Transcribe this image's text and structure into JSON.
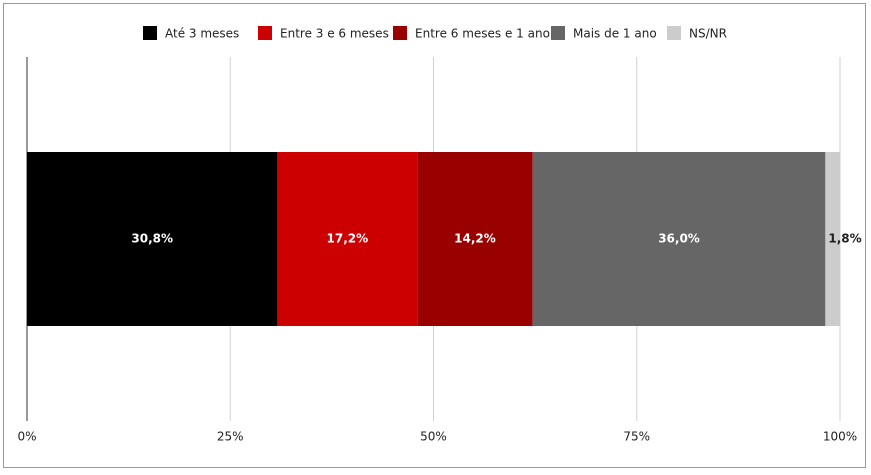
{
  "chart_data": {
    "type": "stacked-bar-horizontal",
    "categories": [
      null
    ],
    "series": [
      {
        "name": "Até 3 meses",
        "color": "#000000",
        "values": [
          30.8
        ],
        "value_labels": [
          "30,8%"
        ]
      },
      {
        "name": "Entre 3 e 6 meses",
        "color": "#cc0000",
        "values": [
          17.2
        ],
        "value_labels": [
          "17,2%"
        ]
      },
      {
        "name": "Entre 6 meses e 1 ano",
        "color": "#990000",
        "values": [
          14.2
        ],
        "value_labels": [
          "14,2%"
        ]
      },
      {
        "name": "Mais de 1 ano",
        "color": "#666666",
        "values": [
          36.0
        ],
        "value_labels": [
          "36,0%"
        ]
      },
      {
        "name": "NS/NR",
        "color": "#cccccc",
        "values": [
          1.8
        ],
        "value_labels": [
          "1,8%"
        ]
      }
    ],
    "xlim": [
      0,
      100
    ],
    "xticks": [
      {
        "value": 0,
        "label": "0%"
      },
      {
        "value": 25,
        "label": "25%"
      },
      {
        "value": 50,
        "label": "50%"
      },
      {
        "value": 75,
        "label": "75%"
      },
      {
        "value": 100,
        "label": "100%"
      }
    ],
    "grid": true,
    "legend": "top"
  }
}
